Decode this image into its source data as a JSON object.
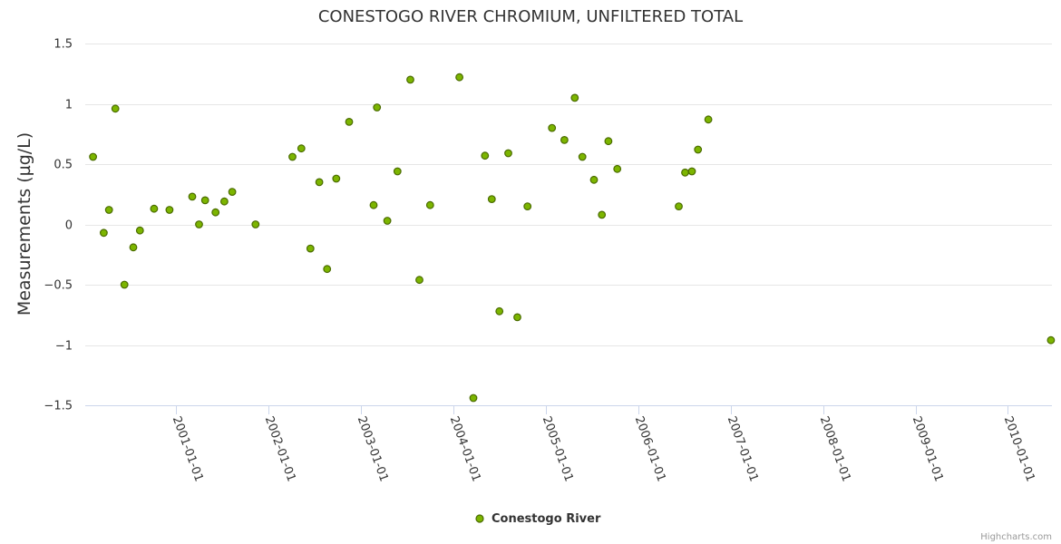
{
  "chart_data": {
    "type": "scatter",
    "title": "CONESTOGO RIVER CHROMIUM, UNFILTERED TOTAL",
    "ylabel": "Measurements (µg/L)",
    "xlabel": "",
    "ylim": [
      -1.5,
      1.5
    ],
    "y_ticks": [
      1.5,
      1,
      0.5,
      0,
      -0.5,
      -1,
      -1.5
    ],
    "y_tick_labels": [
      "1.5",
      "1",
      "0.5",
      "0",
      "−0.5",
      "−1",
      "−1.5"
    ],
    "xlim": [
      "2000-01-07",
      "2010-06-24"
    ],
    "x_ticks": [
      "2001-01-01",
      "2002-01-01",
      "2003-01-01",
      "2004-01-01",
      "2005-01-01",
      "2006-01-01",
      "2007-01-01",
      "2008-01-01",
      "2009-01-01",
      "2010-01-01"
    ],
    "grid": true,
    "legend": "bottom-center",
    "credits": "Highcharts.com",
    "series": [
      {
        "name": "Conestogo River",
        "color": "#7cb500",
        "outline": "#4a6b00",
        "points": [
          [
            "2000-02-07",
            0.56
          ],
          [
            "2000-03-20",
            -0.07
          ],
          [
            "2000-04-10",
            0.12
          ],
          [
            "2000-05-05",
            0.96
          ],
          [
            "2000-06-10",
            -0.5
          ],
          [
            "2000-07-15",
            -0.19
          ],
          [
            "2000-08-10",
            -0.05
          ],
          [
            "2000-10-05",
            0.13
          ],
          [
            "2000-12-05",
            0.12
          ],
          [
            "2001-03-05",
            0.23
          ],
          [
            "2001-04-01",
            0.0
          ],
          [
            "2001-04-25",
            0.2
          ],
          [
            "2001-06-05",
            0.1
          ],
          [
            "2001-07-10",
            0.19
          ],
          [
            "2001-08-10",
            0.27
          ],
          [
            "2001-11-10",
            0.0
          ],
          [
            "2002-04-05",
            0.56
          ],
          [
            "2002-05-10",
            0.63
          ],
          [
            "2002-06-15",
            -0.2
          ],
          [
            "2002-07-20",
            0.35
          ],
          [
            "2002-08-20",
            -0.37
          ],
          [
            "2002-09-25",
            0.38
          ],
          [
            "2002-11-15",
            0.85
          ],
          [
            "2003-02-20",
            0.16
          ],
          [
            "2003-03-05",
            0.97
          ],
          [
            "2003-04-15",
            0.03
          ],
          [
            "2003-05-25",
            0.44
          ],
          [
            "2003-07-15",
            1.2
          ],
          [
            "2003-08-20",
            -0.46
          ],
          [
            "2003-10-01",
            0.16
          ],
          [
            "2004-01-25",
            1.22
          ],
          [
            "2004-03-20",
            -1.44
          ],
          [
            "2004-05-05",
            0.57
          ],
          [
            "2004-06-01",
            0.21
          ],
          [
            "2004-07-01",
            -0.72
          ],
          [
            "2004-08-05",
            0.59
          ],
          [
            "2004-09-10",
            -0.77
          ],
          [
            "2004-10-20",
            0.15
          ],
          [
            "2005-01-25",
            0.8
          ],
          [
            "2005-03-15",
            0.7
          ],
          [
            "2005-04-25",
            1.05
          ],
          [
            "2005-05-25",
            0.56
          ],
          [
            "2005-07-10",
            0.37
          ],
          [
            "2005-08-10",
            0.08
          ],
          [
            "2005-09-05",
            0.69
          ],
          [
            "2005-10-10",
            0.46
          ],
          [
            "2006-06-10",
            0.15
          ],
          [
            "2006-07-05",
            0.43
          ],
          [
            "2006-08-01",
            0.44
          ],
          [
            "2006-08-25",
            0.62
          ],
          [
            "2006-10-05",
            0.87
          ],
          [
            "2010-06-20",
            -0.96
          ]
        ]
      }
    ]
  }
}
